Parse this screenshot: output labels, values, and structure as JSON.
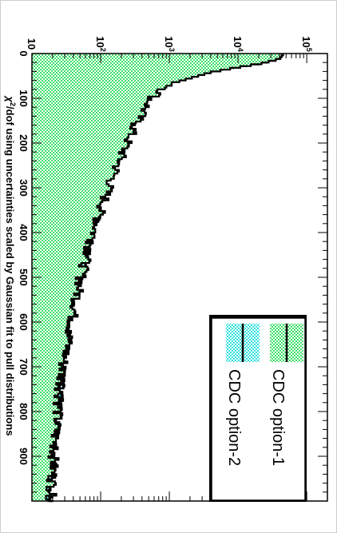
{
  "chart_data": {
    "type": "histogram",
    "orientation": "rotated-90-clockwise",
    "xlabel": "χ²/dof using uncertainties scaled by Gaussian fit to pull distributions",
    "xlabel_parts": {
      "chi": "χ",
      "sup": "2",
      "rest": "/dof using uncertainties scaled by Gaussian fit to pull distributions"
    },
    "ylabel": "",
    "xlim": [
      0,
      1000
    ],
    "ylim": [
      10,
      200000
    ],
    "log_y": true,
    "grid": false,
    "legend_placement": "bottom-right",
    "x_ticks": [
      {
        "value": 0,
        "label": "0"
      },
      {
        "value": 100,
        "label": "100"
      },
      {
        "value": 200,
        "label": "200"
      },
      {
        "value": 300,
        "label": "300"
      },
      {
        "value": 400,
        "label": "400"
      },
      {
        "value": 500,
        "label": "500"
      },
      {
        "value": 600,
        "label": "600"
      },
      {
        "value": 700,
        "label": "700"
      },
      {
        "value": 800,
        "label": "800"
      },
      {
        "value": 900,
        "label": "900"
      }
    ],
    "y_ticks": [
      {
        "value": 10,
        "base": "10",
        "exp": ""
      },
      {
        "value": 100,
        "base": "10",
        "exp": "2"
      },
      {
        "value": 1000,
        "base": "10",
        "exp": "3"
      },
      {
        "value": 10000,
        "base": "10",
        "exp": "4"
      },
      {
        "value": 100000,
        "base": "10",
        "exp": "5"
      }
    ],
    "series": [
      {
        "name": "CDC option-1",
        "style": "green hatched fill with black line",
        "fill": "#3fe06a",
        "line": "#000000",
        "x": [
          0,
          10,
          20,
          30,
          40,
          60,
          80,
          100,
          150,
          200,
          250,
          300,
          350,
          400,
          450,
          500,
          550,
          600,
          650,
          700,
          750,
          800,
          850,
          900,
          950,
          1000
        ],
        "y": [
          45000,
          40000,
          22000,
          9000,
          4000,
          1400,
          800,
          540,
          340,
          240,
          175,
          130,
          100,
          80,
          64,
          52,
          45,
          38,
          33,
          28,
          26,
          24,
          22,
          21,
          20,
          19
        ]
      },
      {
        "name": "CDC option-2",
        "style": "cyan hatched fill with black line",
        "fill": "#33e0e0",
        "line": "#000000",
        "x": [
          0,
          10,
          20,
          30,
          40,
          60,
          80,
          100,
          150,
          200,
          250,
          300,
          350,
          400,
          450,
          500,
          550,
          600,
          650,
          700,
          750,
          800,
          850,
          900,
          950,
          1000
        ],
        "y": [
          45000,
          40000,
          20000,
          7000,
          3000,
          1100,
          650,
          430,
          280,
          200,
          150,
          115,
          90,
          72,
          58,
          48,
          42,
          36,
          31,
          27,
          25,
          23,
          21,
          20,
          19,
          18
        ]
      }
    ]
  },
  "colors": {
    "frame": "#000000",
    "background": "#ffffff",
    "series1_fill": "#3fe06a",
    "series2_fill": "#33e0e0"
  }
}
